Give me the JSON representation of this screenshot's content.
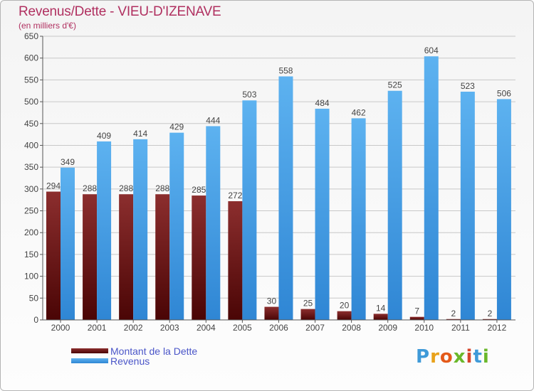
{
  "header": {
    "title": "Revenus/Dette - VIEU-D'IZENAVE",
    "subtitle": "(en milliers d'€)"
  },
  "legend": [
    {
      "label": "Montant de la Dette",
      "color": "#7a1a1a"
    },
    {
      "label": "Revenus",
      "color": "#4da3e6"
    }
  ],
  "logo": {
    "text": "Proxiti"
  },
  "chart_data": {
    "type": "bar",
    "title": "Revenus/Dette - VIEU-D'IZENAVE",
    "subtitle": "(en milliers d'€)",
    "categories": [
      "2000",
      "2001",
      "2002",
      "2003",
      "2004",
      "2005",
      "2006",
      "2007",
      "2008",
      "2009",
      "2010",
      "2011",
      "2012"
    ],
    "series": [
      {
        "name": "Montant de la Dette",
        "color": "#7a1a1a",
        "values": [
          294,
          288,
          288,
          288,
          285,
          272,
          30,
          25,
          20,
          14,
          7,
          2,
          2
        ]
      },
      {
        "name": "Revenus",
        "color": "#4da3e6",
        "values": [
          349,
          409,
          414,
          429,
          444,
          503,
          558,
          484,
          462,
          525,
          604,
          523,
          506
        ]
      }
    ],
    "ylim": [
      0,
      650
    ],
    "yticks": [
      0,
      50,
      100,
      150,
      200,
      250,
      300,
      350,
      400,
      450,
      500,
      550,
      600,
      650
    ],
    "grid": true,
    "legend_position": "bottom-left"
  }
}
